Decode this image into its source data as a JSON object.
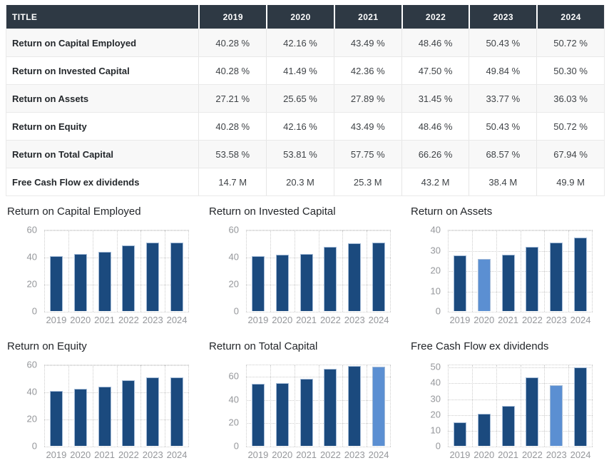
{
  "table": {
    "header": {
      "title": "TITLE",
      "years": [
        "2019",
        "2020",
        "2021",
        "2022",
        "2023",
        "2024"
      ]
    },
    "rows": [
      {
        "label": "Return on Capital Employed",
        "values": [
          "40.28 %",
          "42.16 %",
          "43.49 %",
          "48.46 %",
          "50.43 %",
          "50.72 %"
        ]
      },
      {
        "label": "Return on Invested Capital",
        "values": [
          "40.28 %",
          "41.49 %",
          "42.36 %",
          "47.50 %",
          "49.84 %",
          "50.30 %"
        ]
      },
      {
        "label": "Return on Assets",
        "values": [
          "27.21 %",
          "25.65 %",
          "27.89 %",
          "31.45 %",
          "33.77 %",
          "36.03 %"
        ]
      },
      {
        "label": "Return on Equity",
        "values": [
          "40.28 %",
          "42.16 %",
          "43.49 %",
          "48.46 %",
          "50.43 %",
          "50.72 %"
        ]
      },
      {
        "label": "Return on Total Capital",
        "values": [
          "53.58 %",
          "53.81 %",
          "57.75 %",
          "66.26 %",
          "68.57 %",
          "67.94 %"
        ]
      },
      {
        "label": "Free Cash Flow ex dividends",
        "values": [
          "14.7 M",
          "20.3 M",
          "25.3 M",
          "43.2 M",
          "38.4 M",
          "49.9 M"
        ]
      }
    ]
  },
  "colors": {
    "header_bg": "#2e3944",
    "bar": "#1b4a7e",
    "bar_highlight": "#5b8fd2",
    "grid": "#cccccc",
    "axis_text": "#95979b"
  },
  "chart_data": [
    {
      "type": "bar",
      "title": "Return on Capital Employed",
      "categories": [
        "2019",
        "2020",
        "2021",
        "2022",
        "2023",
        "2024"
      ],
      "values": [
        40.28,
        42.16,
        43.49,
        48.46,
        50.43,
        50.72
      ],
      "yticks": [
        0,
        20,
        40,
        60
      ],
      "ylim": [
        0,
        60
      ],
      "highlight_index": null,
      "grid": true,
      "legend": false
    },
    {
      "type": "bar",
      "title": "Return on Invested Capital",
      "categories": [
        "2019",
        "2020",
        "2021",
        "2022",
        "2023",
        "2024"
      ],
      "values": [
        40.28,
        41.49,
        42.36,
        47.5,
        49.84,
        50.3
      ],
      "yticks": [
        0,
        20,
        40,
        60
      ],
      "ylim": [
        0,
        60
      ],
      "highlight_index": null,
      "grid": true,
      "legend": false
    },
    {
      "type": "bar",
      "title": "Return on Assets",
      "categories": [
        "2019",
        "2020",
        "2021",
        "2022",
        "2023",
        "2024"
      ],
      "values": [
        27.21,
        25.65,
        27.89,
        31.45,
        33.77,
        36.03
      ],
      "yticks": [
        0,
        10,
        20,
        30,
        40
      ],
      "ylim": [
        0,
        40
      ],
      "highlight_index": 1,
      "grid": true,
      "legend": false
    },
    {
      "type": "bar",
      "title": "Return on Equity",
      "categories": [
        "2019",
        "2020",
        "2021",
        "2022",
        "2023",
        "2024"
      ],
      "values": [
        40.28,
        42.16,
        43.49,
        48.46,
        50.43,
        50.72
      ],
      "yticks": [
        0,
        20,
        40,
        60
      ],
      "ylim": [
        0,
        60
      ],
      "highlight_index": null,
      "grid": true,
      "legend": false
    },
    {
      "type": "bar",
      "title": "Return on Total Capital",
      "categories": [
        "2019",
        "2020",
        "2021",
        "2022",
        "2023",
        "2024"
      ],
      "values": [
        53.58,
        53.81,
        57.75,
        66.26,
        68.57,
        67.94
      ],
      "yticks": [
        0,
        20,
        40,
        60
      ],
      "ylim": [
        0,
        70
      ],
      "highlight_index": 5,
      "grid": true,
      "legend": false
    },
    {
      "type": "bar",
      "title": "Free Cash Flow ex dividends",
      "categories": [
        "2019",
        "2020",
        "2021",
        "2022",
        "2023",
        "2024"
      ],
      "values": [
        14.7,
        20.3,
        25.3,
        43.2,
        38.4,
        49.9
      ],
      "yticks": [
        0,
        10,
        20,
        30,
        40,
        50
      ],
      "ylim": [
        0,
        51.5
      ],
      "highlight_index": 4,
      "grid": true,
      "legend": false
    }
  ]
}
